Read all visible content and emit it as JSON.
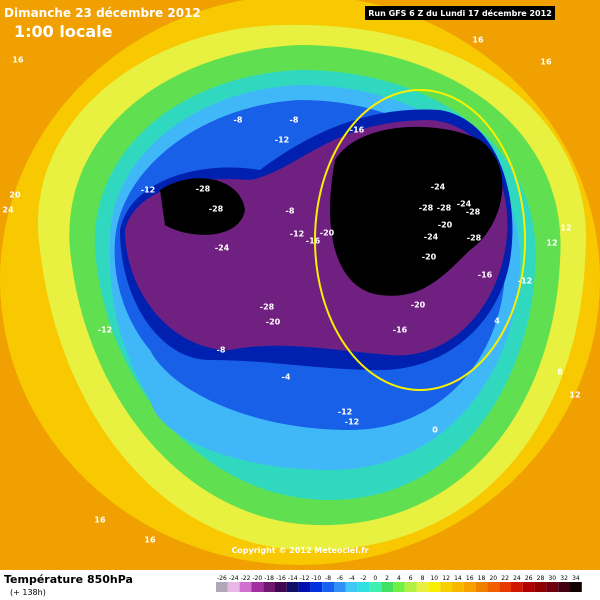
{
  "header": {
    "date": "Dimanche 23 décembre 2012",
    "time": "1:00 locale",
    "run": "Run GFS 6 Z du Lundi 17 décembre 2012"
  },
  "map": {
    "labels": [
      "-8",
      "-8",
      "-12",
      "-16",
      "-12",
      "-28",
      "-28",
      "-24",
      "-8",
      "-12",
      "-16",
      "-20",
      "-24",
      "-28",
      "-28",
      "-24",
      "-28",
      "-20",
      "-24",
      "-28",
      "-20",
      "-16",
      "-28",
      "-20",
      "-20",
      "-16",
      "-12",
      "-8",
      "-4",
      "-12",
      "-12",
      "0",
      "4",
      "12",
      "12",
      "16",
      "16",
      "16",
      "20",
      "24",
      "-12",
      "8",
      "16",
      "16",
      "12"
    ],
    "copyright": "Copyright © 2012 Meteociel.fr"
  },
  "footer": {
    "title": "Température 850hPa",
    "lead": "(+ 138h)"
  },
  "legend": {
    "ticks": [
      -26,
      -24,
      -22,
      -20,
      -18,
      -16,
      -14,
      -12,
      -10,
      -8,
      -6,
      -4,
      -2,
      0,
      2,
      4,
      6,
      8,
      10,
      12,
      14,
      16,
      18,
      20,
      22,
      24,
      26,
      28,
      30,
      32,
      34
    ],
    "colors": [
      "#b0a8b8",
      "#e8b8e8",
      "#d070d0",
      "#a030a0",
      "#701870",
      "#400850",
      "#10106a",
      "#0010b0",
      "#0030e0",
      "#1860f0",
      "#3090f8",
      "#40c8f8",
      "#30e0e0",
      "#40f0b0",
      "#40e060",
      "#70f040",
      "#b0f040",
      "#e8f040",
      "#f8f000",
      "#f8d000",
      "#f8b800",
      "#f8a000",
      "#f08000",
      "#f06000",
      "#e83800",
      "#d01800",
      "#b00000",
      "#900000",
      "#700010",
      "#400010",
      "#100000"
    ]
  }
}
